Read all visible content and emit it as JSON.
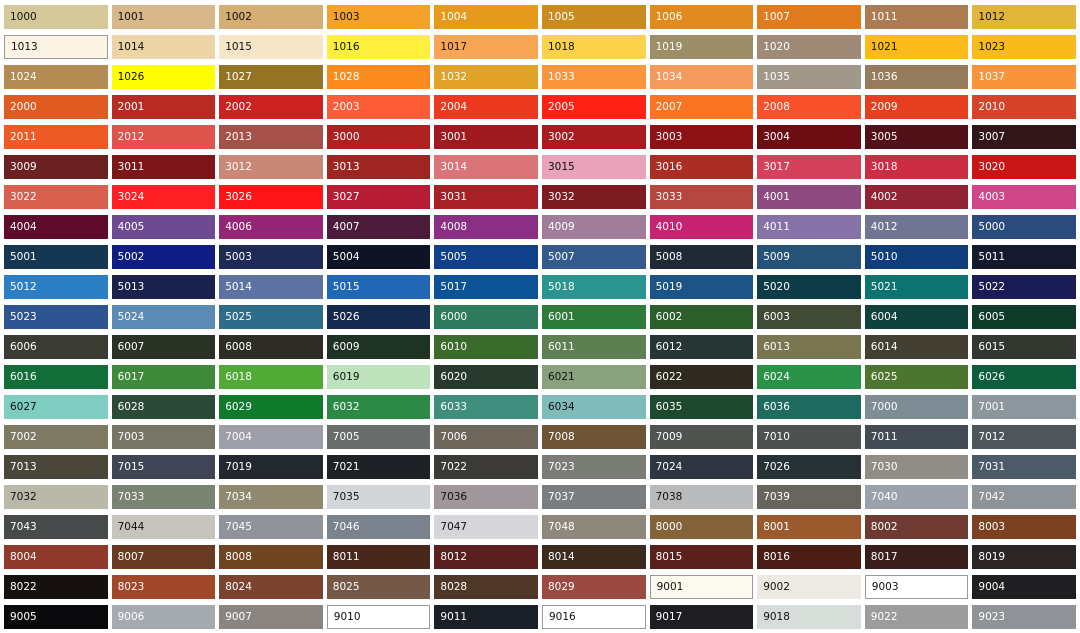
{
  "swatches": [
    [
      "1000",
      "#d5c99a",
      "#111"
    ],
    [
      "1001",
      "#d6b88a",
      "#111"
    ],
    [
      "1002",
      "#d4ae72",
      "#111"
    ],
    [
      "1003",
      "#f5a22a",
      "#111"
    ],
    [
      "1004",
      "#e59a1d",
      "#fff"
    ],
    [
      "1005",
      "#c98b1f",
      "#fff"
    ],
    [
      "1006",
      "#e18a20",
      "#fff"
    ],
    [
      "1007",
      "#e07b1f",
      "#fff"
    ],
    [
      "1011",
      "#ac7b52",
      "#fff"
    ],
    [
      "1012",
      "#e1b43a",
      "#111"
    ],
    [
      "1013",
      "#fbf4e4",
      "#111"
    ],
    [
      "1014",
      "#ecd4a6",
      "#111"
    ],
    [
      "1015",
      "#f5e6c8",
      "#111"
    ],
    [
      "1016",
      "#fdf03c",
      "#111"
    ],
    [
      "1017",
      "#f8a556",
      "#111"
    ],
    [
      "1018",
      "#fbd24a",
      "#111"
    ],
    [
      "1019",
      "#9c8f67",
      "#fff"
    ],
    [
      "1020",
      "#9f8a78",
      "#fff"
    ],
    [
      "1021",
      "#fbbc1b",
      "#111"
    ],
    [
      "1023",
      "#f9ba1d",
      "#111"
    ],
    [
      "1024",
      "#b28c53",
      "#fff"
    ],
    [
      "1026",
      "#ffff00",
      "#111"
    ],
    [
      "1027",
      "#957324",
      "#fff"
    ],
    [
      "1028",
      "#fb8b1c",
      "#fff"
    ],
    [
      "1032",
      "#e0a228",
      "#fff"
    ],
    [
      "1033",
      "#f9953b",
      "#fff"
    ],
    [
      "1034",
      "#f39a5e",
      "#fff"
    ],
    [
      "1035",
      "#a1978a",
      "#fff"
    ],
    [
      "1036",
      "#967b5c",
      "#fff"
    ],
    [
      "1037",
      "#f8953a",
      "#fff"
    ],
    [
      "2000",
      "#e05b22",
      "#fff"
    ],
    [
      "2001",
      "#b82b25",
      "#fff"
    ],
    [
      "2002",
      "#cb2121",
      "#fff"
    ],
    [
      "2003",
      "#fc5c38",
      "#fff"
    ],
    [
      "2004",
      "#ec3a21",
      "#fff"
    ],
    [
      "2005",
      "#ff2115",
      "#fff"
    ],
    [
      "2007",
      "#fb7423",
      "#fff"
    ],
    [
      "2008",
      "#f7502a",
      "#fff"
    ],
    [
      "2009",
      "#e63f1f",
      "#fff"
    ],
    [
      "2010",
      "#d6432b",
      "#fff"
    ],
    [
      "2011",
      "#ee5a25",
      "#fff"
    ],
    [
      "2012",
      "#de544c",
      "#fff"
    ],
    [
      "2013",
      "#a5514a",
      "#fff"
    ],
    [
      "3000",
      "#ae2121",
      "#fff"
    ],
    [
      "3001",
      "#9e1a1f",
      "#fff"
    ],
    [
      "3002",
      "#a81b1e",
      "#fff"
    ],
    [
      "3003",
      "#8c1216",
      "#fff"
    ],
    [
      "3004",
      "#6c0d14",
      "#fff"
    ],
    [
      "3005",
      "#521118",
      "#fff"
    ],
    [
      "3007",
      "#301519",
      "#fff"
    ],
    [
      "3009",
      "#6b2121",
      "#fff"
    ],
    [
      "3011",
      "#7d1618",
      "#fff"
    ],
    [
      "3012",
      "#c98877",
      "#fff"
    ],
    [
      "3013",
      "#9e2521",
      "#fff"
    ],
    [
      "3014",
      "#da7478",
      "#fff"
    ],
    [
      "3015",
      "#e8a3bb",
      "#111"
    ],
    [
      "3016",
      "#ac2d25",
      "#fff"
    ],
    [
      "3017",
      "#d5415a",
      "#fff"
    ],
    [
      "3018",
      "#cc2d43",
      "#fff"
    ],
    [
      "3020",
      "#c81617",
      "#fff"
    ],
    [
      "3022",
      "#d95f4f",
      "#fff"
    ],
    [
      "3024",
      "#ff1f24",
      "#fff"
    ],
    [
      "3026",
      "#ff1517",
      "#fff"
    ],
    [
      "3027",
      "#b81c35",
      "#fff"
    ],
    [
      "3031",
      "#a72026",
      "#fff"
    ],
    [
      "3032",
      "#7d1b22",
      "#fff"
    ],
    [
      "3033",
      "#b54640",
      "#fff"
    ],
    [
      "4001",
      "#8c4a7f",
      "#fff"
    ],
    [
      "4002",
      "#902334",
      "#fff"
    ],
    [
      "4003",
      "#d14589",
      "#fff"
    ],
    [
      "4004",
      "#5f0b2c",
      "#fff"
    ],
    [
      "4005",
      "#6e4a93",
      "#fff"
    ],
    [
      "4006",
      "#962575",
      "#fff"
    ],
    [
      "4007",
      "#4a1c3a",
      "#fff"
    ],
    [
      "4008",
      "#8a2f84",
      "#fff"
    ],
    [
      "4009",
      "#a27d99",
      "#fff"
    ],
    [
      "4010",
      "#c62470",
      "#fff"
    ],
    [
      "4011",
      "#8672a7",
      "#fff"
    ],
    [
      "4012",
      "#6f7593",
      "#fff"
    ],
    [
      "5000",
      "#2a4b7c",
      "#fff"
    ],
    [
      "5001",
      "#163752",
      "#fff"
    ],
    [
      "5002",
      "#0f1d83",
      "#fff"
    ],
    [
      "5003",
      "#1d2b56",
      "#fff"
    ],
    [
      "5004",
      "#0e1326",
      "#fff"
    ],
    [
      "5005",
      "#11408a",
      "#fff"
    ],
    [
      "5007",
      "#345b8c",
      "#fff"
    ],
    [
      "5008",
      "#1f2a36",
      "#fff"
    ],
    [
      "5009",
      "#265278",
      "#fff"
    ],
    [
      "5010",
      "#0f3c7a",
      "#fff"
    ],
    [
      "5011",
      "#14192d",
      "#fff"
    ],
    [
      "5012",
      "#2c7fc4",
      "#fff"
    ],
    [
      "5013",
      "#1a214c",
      "#fff"
    ],
    [
      "5014",
      "#5d72a0",
      "#fff"
    ],
    [
      "5015",
      "#2068b5",
      "#fff"
    ],
    [
      "5017",
      "#0c5296",
      "#fff"
    ],
    [
      "5018",
      "#2a958f",
      "#fff"
    ],
    [
      "5019",
      "#1c5485",
      "#fff"
    ],
    [
      "5020",
      "#0e3c46",
      "#fff"
    ],
    [
      "5021",
      "#0b7470",
      "#fff"
    ],
    [
      "5022",
      "#1b1b56",
      "#fff"
    ],
    [
      "5023",
      "#2e5591",
      "#fff"
    ],
    [
      "5024",
      "#5b8ab4",
      "#fff"
    ],
    [
      "5025",
      "#2e6d8a",
      "#fff"
    ],
    [
      "5026",
      "#162a4f",
      "#fff"
    ],
    [
      "6000",
      "#2e7a5c",
      "#fff"
    ],
    [
      "6001",
      "#2f7b3a",
      "#fff"
    ],
    [
      "6002",
      "#2b5e2a",
      "#fff"
    ],
    [
      "6003",
      "#414a37",
      "#fff"
    ],
    [
      "6004",
      "#0f423c",
      "#fff"
    ],
    [
      "6005",
      "#0e3b2a",
      "#fff"
    ],
    [
      "6006",
      "#3a3b33",
      "#fff"
    ],
    [
      "6007",
      "#2a3125",
      "#fff"
    ],
    [
      "6008",
      "#2d2d25",
      "#fff"
    ],
    [
      "6009",
      "#1f3325",
      "#fff"
    ],
    [
      "6010",
      "#3a6a2c",
      "#fff"
    ],
    [
      "6011",
      "#5d7f52",
      "#fff"
    ],
    [
      "6012",
      "#273534",
      "#fff"
    ],
    [
      "6013",
      "#7a7652",
      "#fff"
    ],
    [
      "6014",
      "#433f33",
      "#fff"
    ],
    [
      "6015",
      "#323730",
      "#fff"
    ],
    [
      "6016",
      "#136f39",
      "#fff"
    ],
    [
      "6017",
      "#3e8a3a",
      "#fff"
    ],
    [
      "6018",
      "#51aa36",
      "#fff"
    ],
    [
      "6019",
      "#bde3bd",
      "#111"
    ],
    [
      "6020",
      "#283a2d",
      "#fff"
    ],
    [
      "6021",
      "#89a17d",
      "#111"
    ],
    [
      "6022",
      "#2f2a1f",
      "#fff"
    ],
    [
      "6024",
      "#2a9246",
      "#fff"
    ],
    [
      "6025",
      "#4c7630",
      "#fff"
    ],
    [
      "6026",
      "#0c5e3d",
      "#fff"
    ],
    [
      "6027",
      "#7fcdc0",
      "#111"
    ],
    [
      "6028",
      "#2b4a38",
      "#fff"
    ],
    [
      "6029",
      "#0f7a2c",
      "#fff"
    ],
    [
      "6032",
      "#2b8a45",
      "#fff"
    ],
    [
      "6033",
      "#3f8d7d",
      "#fff"
    ],
    [
      "6034",
      "#7fbcb9",
      "#111"
    ],
    [
      "6035",
      "#1d4a2f",
      "#fff"
    ],
    [
      "6036",
      "#1f6b60",
      "#fff"
    ],
    [
      "7000",
      "#7e8c95",
      "#fff"
    ],
    [
      "7001",
      "#8c969d",
      "#fff"
    ],
    [
      "7002",
      "#7f7a63",
      "#fff"
    ],
    [
      "7003",
      "#767566",
      "#fff"
    ],
    [
      "7004",
      "#9e9ea8",
      "#fff"
    ],
    [
      "7005",
      "#686d6c",
      "#fff"
    ],
    [
      "7006",
      "#6e665b",
      "#fff"
    ],
    [
      "7008",
      "#6c5434",
      "#fff"
    ],
    [
      "7009",
      "#4f5450",
      "#fff"
    ],
    [
      "7010",
      "#4d5150",
      "#fff"
    ],
    [
      "7011",
      "#434c55",
      "#fff"
    ],
    [
      "7012",
      "#4f575c",
      "#fff"
    ],
    [
      "7013",
      "#4a463a",
      "#fff"
    ],
    [
      "7015",
      "#3f4554",
      "#fff"
    ],
    [
      "7019",
      "#23282f",
      "#fff"
    ],
    [
      "7021",
      "#1e2126",
      "#fff"
    ],
    [
      "7022",
      "#3b3a37",
      "#fff"
    ],
    [
      "7023",
      "#7a7c76",
      "#fff"
    ],
    [
      "7024",
      "#303641",
      "#fff"
    ],
    [
      "7026",
      "#263235",
      "#fff"
    ],
    [
      "7030",
      "#8f8d85",
      "#fff"
    ],
    [
      "7031",
      "#4d5a69",
      "#fff"
    ],
    [
      "7032",
      "#bab9a9",
      "#111"
    ],
    [
      "7033",
      "#7a8272",
      "#fff"
    ],
    [
      "7034",
      "#8f8a6f",
      "#fff"
    ],
    [
      "7035",
      "#d3d6d9",
      "#111"
    ],
    [
      "7036",
      "#9f979b",
      "#111"
    ],
    [
      "7037",
      "#7b7e80",
      "#fff"
    ],
    [
      "7038",
      "#b8babb",
      "#111"
    ],
    [
      "7039",
      "#67655e",
      "#fff"
    ],
    [
      "7040",
      "#9ba1ab",
      "#fff"
    ],
    [
      "7042",
      "#8d9396",
      "#fff"
    ],
    [
      "7043",
      "#464a4a",
      "#fff"
    ],
    [
      "7044",
      "#c6c4bc",
      "#111"
    ],
    [
      "7045",
      "#909399",
      "#fff"
    ],
    [
      "7046",
      "#7a838d",
      "#fff"
    ],
    [
      "7047",
      "#d6d5d9",
      "#111"
    ],
    [
      "7048",
      "#8e877b",
      "#fff"
    ],
    [
      "8000",
      "#82633a",
      "#fff"
    ],
    [
      "8001",
      "#9a5a2e",
      "#fff"
    ],
    [
      "8002",
      "#6f3a32",
      "#fff"
    ],
    [
      "8003",
      "#7c4022",
      "#fff"
    ],
    [
      "8004",
      "#8f3a2a",
      "#fff"
    ],
    [
      "8007",
      "#6b3a22",
      "#fff"
    ],
    [
      "8008",
      "#6f4521",
      "#fff"
    ],
    [
      "8011",
      "#49271c",
      "#fff"
    ],
    [
      "8012",
      "#5c1f1f",
      "#fff"
    ],
    [
      "8014",
      "#3b2a1d",
      "#fff"
    ],
    [
      "8015",
      "#5a201b",
      "#fff"
    ],
    [
      "8016",
      "#4a1e17",
      "#fff"
    ],
    [
      "8017",
      "#3a1e1c",
      "#fff"
    ],
    [
      "8019",
      "#2c2526",
      "#fff"
    ],
    [
      "8022",
      "#16100f",
      "#fff"
    ],
    [
      "8023",
      "#a3472a",
      "#fff"
    ],
    [
      "8024",
      "#7a4430",
      "#fff"
    ],
    [
      "8025",
      "#755846",
      "#fff"
    ],
    [
      "8028",
      "#4f3827",
      "#fff"
    ],
    [
      "8029",
      "#9a4a40",
      "#fff"
    ],
    [
      "9001",
      "#fcf9ee",
      "#111"
    ],
    [
      "9002",
      "#eceae2",
      "#111"
    ],
    [
      "9003",
      "#ffffff",
      "#111"
    ],
    [
      "9004",
      "#1f1f21",
      "#fff"
    ],
    [
      "9005",
      "#0a0a0d",
      "#fff"
    ],
    [
      "9006",
      "#a5a9b0",
      "#fff"
    ],
    [
      "9007",
      "#8a8580",
      "#fff"
    ],
    [
      "9010",
      "#ffffff",
      "#111"
    ],
    [
      "9011",
      "#1a1f28",
      "#fff"
    ],
    [
      "9016",
      "#ffffff",
      "#111"
    ],
    [
      "9017",
      "#1e1e22",
      "#fff"
    ],
    [
      "9018",
      "#d7ddd9",
      "#111"
    ],
    [
      "9022",
      "#9c9c9c",
      "#fff"
    ],
    [
      "9023",
      "#8f9296",
      "#fff"
    ]
  ],
  "bordered": [
    "1013",
    "9001",
    "9003",
    "9010",
    "9016"
  ]
}
